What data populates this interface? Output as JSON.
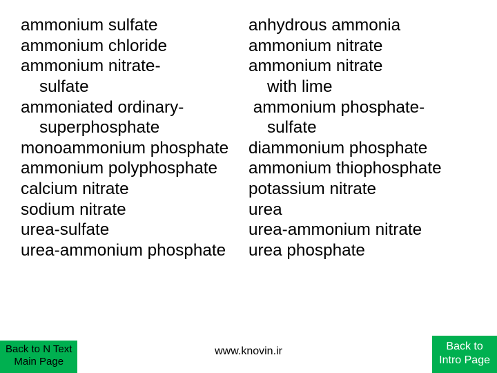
{
  "columns": {
    "left": [
      "ammonium sulfate",
      "ammonium chloride",
      "ammonium nitrate-",
      "    sulfate",
      "ammoniated ordinary-",
      "    superphosphate",
      "monoammonium phosphate",
      "ammonium polyphosphate",
      "calcium nitrate",
      "sodium nitrate",
      "urea-sulfate",
      "urea-ammonium phosphate"
    ],
    "right": [
      "anhydrous ammonia",
      "ammonium nitrate",
      "ammonium nitrate",
      "    with lime",
      " ammonium phosphate-",
      "    sulfate",
      "diammonium phosphate",
      "ammonium thiophosphate",
      "potassium nitrate",
      "urea",
      "urea-ammonium nitrate",
      "urea phosphate"
    ]
  },
  "footer_url": "www.knovin.ir",
  "buttons": {
    "left": {
      "line1": "Back to N Text",
      "line2": "Main Page"
    },
    "right": {
      "line1": "Back to",
      "line2": "Intro Page"
    }
  },
  "colors": {
    "page_bg": "#ffffff",
    "text": "#000000",
    "button_bg": "#00b050",
    "button_left_text": "#000000",
    "button_right_text": "#ffffff"
  }
}
